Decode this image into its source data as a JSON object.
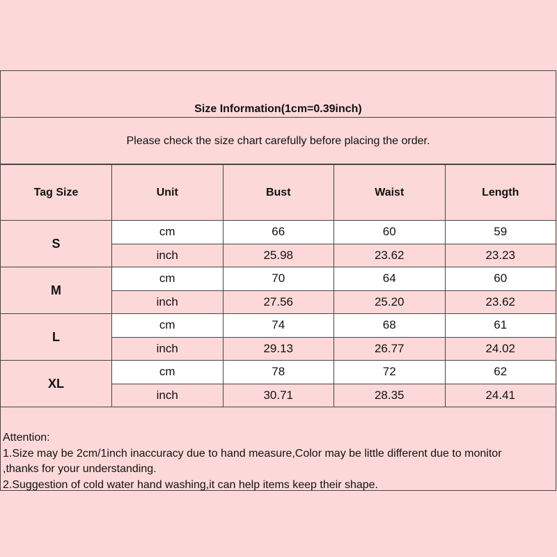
{
  "title": "Size Information(1cm=0.39inch)",
  "subtitle": "Please check the size chart carefully before placing the order.",
  "headers": [
    "Tag Size",
    "Unit",
    "Bust",
    "Waist",
    "Length"
  ],
  "rows": [
    {
      "size": "S",
      "cm": {
        "unit": "cm",
        "bust": "66",
        "waist": "60",
        "length": "59"
      },
      "inch": {
        "unit": "inch",
        "bust": "25.98",
        "waist": "23.62",
        "length": "23.23"
      }
    },
    {
      "size": "M",
      "cm": {
        "unit": "cm",
        "bust": "70",
        "waist": "64",
        "length": "60"
      },
      "inch": {
        "unit": "inch",
        "bust": "27.56",
        "waist": "25.20",
        "length": "23.62"
      }
    },
    {
      "size": "L",
      "cm": {
        "unit": "cm",
        "bust": "74",
        "waist": "68",
        "length": "61"
      },
      "inch": {
        "unit": "inch",
        "bust": "29.13",
        "waist": "26.77",
        "length": "24.02"
      }
    },
    {
      "size": "XL",
      "cm": {
        "unit": "cm",
        "bust": "78",
        "waist": "72",
        "length": "62"
      },
      "inch": {
        "unit": "inch",
        "bust": "30.71",
        "waist": "28.35",
        "length": "24.41"
      }
    }
  ],
  "attention": [
    "Attention:",
    "1.Size may be 2cm/1inch inaccuracy due to hand measure,Color may be little different due to monitor",
    ",thanks for your understanding.",
    "2.Suggestion of cold water hand washing,it can help items keep their shape."
  ],
  "colors": {
    "background": "#fcd9d8",
    "cm_row": "#ffffff",
    "border": "#444444"
  }
}
